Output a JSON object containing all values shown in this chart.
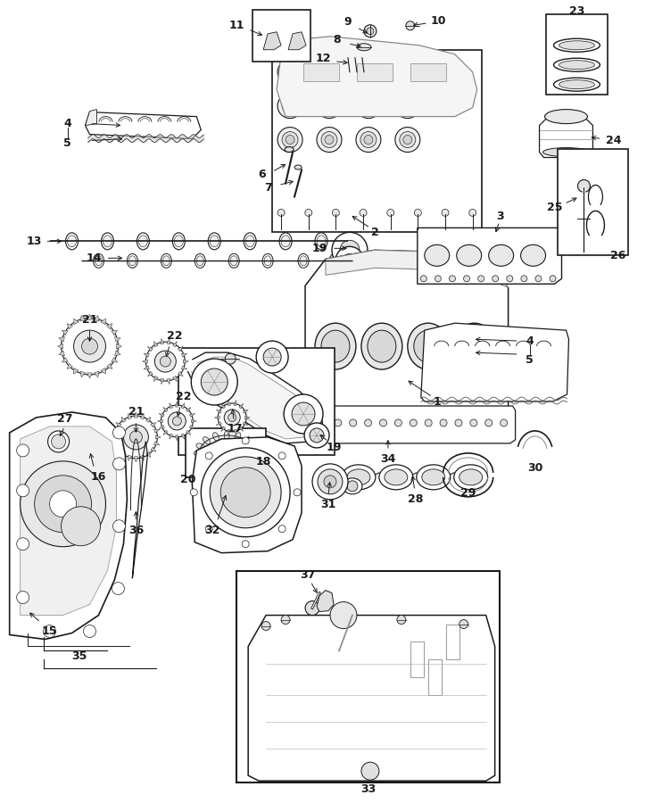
{
  "background_color": "#ffffff",
  "line_color": "#1a1a1a",
  "fig_width": 7.33,
  "fig_height": 9.0,
  "dpi": 100
}
